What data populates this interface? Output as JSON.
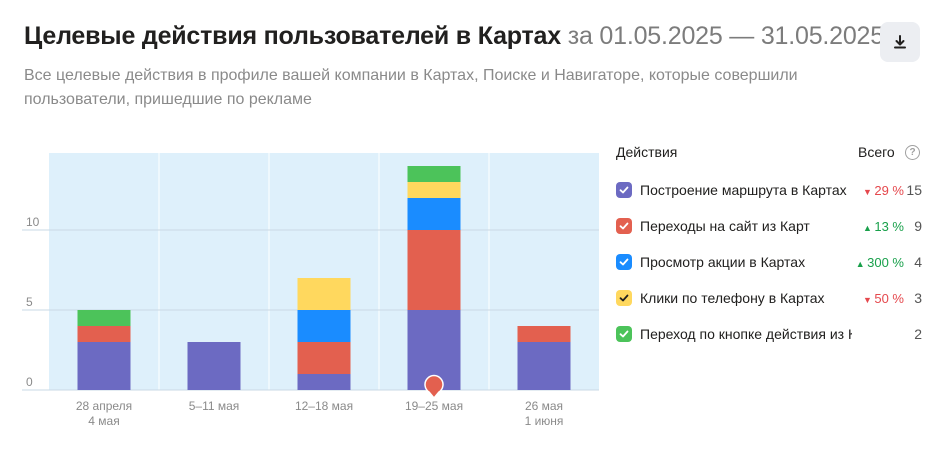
{
  "header": {
    "title": "Целевые действия пользователей в Картах",
    "period": "за 01.05.2025 — 31.05.2025",
    "subtitle": "Все целевые действия в профиле вашей компании в Картах, Поиске и Навигаторе, которые совершили пользователи, пришедшие по рекламе"
  },
  "legend": {
    "actions_header": "Действия",
    "total_header": "Всего",
    "help_icon": "?",
    "items": [
      {
        "label": "Построение маршрута в Картах",
        "change": "29 %",
        "direction": "down",
        "total": "15",
        "color": "#6c6ac2"
      },
      {
        "label": "Переходы на сайт из Карт",
        "change": "13 %",
        "direction": "up",
        "total": "9",
        "color": "#e3604f"
      },
      {
        "label": "Просмотр акции в Картах",
        "change": "300 %",
        "direction": "up",
        "total": "4",
        "color": "#1a8cff"
      },
      {
        "label": "Клики по телефону в Картах",
        "change": "50 %",
        "direction": "down",
        "total": "3",
        "color": "#ffd85e"
      },
      {
        "label": "Переход по кнопке действия из Карт",
        "change": "",
        "direction": "",
        "total": "2",
        "color": "#4cc35a"
      }
    ]
  },
  "chart_data": {
    "type": "bar",
    "stacked": true,
    "categories": [
      [
        "28 апреля",
        "4 мая"
      ],
      [
        "5–11 мая"
      ],
      [
        "12–18 мая"
      ],
      [
        "19–25 мая"
      ],
      [
        "26 мая",
        "1 июня"
      ]
    ],
    "series": [
      {
        "name": "Построение маршрута в Картах",
        "color": "#6c6ac2",
        "values": [
          3,
          3,
          1,
          5,
          3
        ]
      },
      {
        "name": "Переходы на сайт из Карт",
        "color": "#e3604f",
        "values": [
          1,
          0,
          2,
          5,
          1
        ]
      },
      {
        "name": "Просмотр акции в Картах",
        "color": "#1a8cff",
        "values": [
          0,
          0,
          2,
          2,
          0
        ]
      },
      {
        "name": "Клики по телефону в Картах",
        "color": "#ffd85e",
        "values": [
          0,
          0,
          2,
          1,
          0
        ]
      },
      {
        "name": "Переход по кнопке действия из Карт",
        "color": "#4cc35a",
        "values": [
          1,
          0,
          0,
          1,
          0
        ]
      }
    ],
    "y_ticks": [
      0,
      5,
      10
    ],
    "ylim": [
      0,
      15
    ],
    "grid": true,
    "marker_category_index": 3,
    "background_color": "#def0fb"
  }
}
